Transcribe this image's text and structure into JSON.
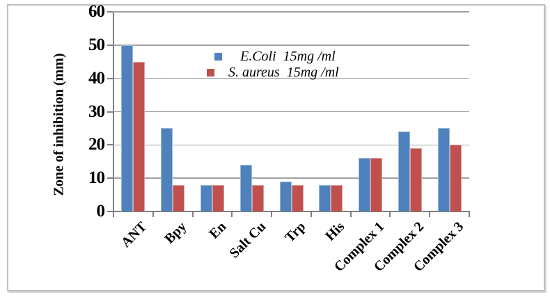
{
  "figure": {
    "background": "#ffffff",
    "border_color": "#bfbfbf"
  },
  "chart_data": {
    "type": "bar",
    "title": "",
    "xlabel": "",
    "ylabel": "Zone of inhibition (mm)",
    "ylim": [
      0,
      60
    ],
    "ytick_interval": 10,
    "yticks": [
      0,
      10,
      20,
      30,
      40,
      50,
      60
    ],
    "grid": true,
    "legend_position": "inside-top-center",
    "axis_color": "#7f7f7f",
    "gridline_color": "#a0a0a0",
    "text_color": "#000000",
    "categories": [
      "ANT",
      "Bpy",
      "En",
      "Salt Cu",
      "Trp",
      "His",
      "Complex 1",
      "Complex 2",
      "Complex 3"
    ],
    "series": [
      {
        "name": "E.Coli  15mg /ml",
        "color": "#4f81bd",
        "values": [
          50,
          25,
          8,
          14,
          9,
          8,
          16,
          24,
          25
        ]
      },
      {
        "name": "S. aureus  15mg /ml",
        "color": "#c0504d",
        "values": [
          45,
          8,
          8,
          8,
          8,
          8,
          16,
          19,
          20
        ]
      }
    ]
  }
}
